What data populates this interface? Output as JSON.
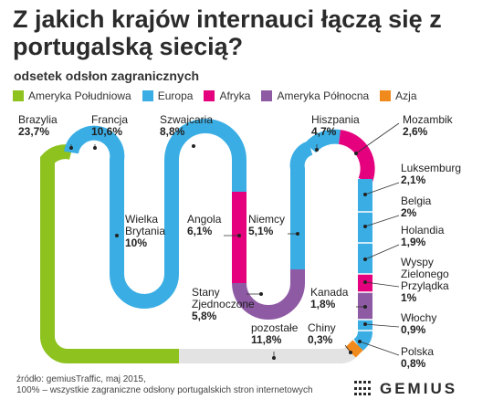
{
  "title": "Z jakich krajów internauci łączą się z portugalską siecią?",
  "subtitle": "odsetek odsłon zagranicznych",
  "legend": [
    {
      "name": "Ameryka Południowa",
      "color": "#8dc21f"
    },
    {
      "name": "Europa",
      "color": "#3aaee4"
    },
    {
      "name": "Afryka",
      "color": "#e5007e"
    },
    {
      "name": "Ameryka Północna",
      "color": "#8e5aa4"
    },
    {
      "name": "Azja",
      "color": "#f08a1c"
    }
  ],
  "chart_data": {
    "type": "serpentine-bar",
    "unit": "%",
    "segments": [
      {
        "name": "Brazylia",
        "value": "23,7%",
        "region": "Ameryka Południowa",
        "color": "#8dc21f"
      },
      {
        "name": "Francja",
        "value": "10,6%",
        "region": "Europa",
        "color": "#3aaee4"
      },
      {
        "name": "Wielka Brytania",
        "value": "10%",
        "region": "Europa",
        "color": "#3aaee4"
      },
      {
        "name": "Szwajcaria",
        "value": "8,8%",
        "region": "Europa",
        "color": "#3aaee4"
      },
      {
        "name": "Angola",
        "value": "6,1%",
        "region": "Afryka",
        "color": "#e5007e"
      },
      {
        "name": "Stany Zjednoczone",
        "value": "5,8%",
        "region": "Ameryka Północna",
        "color": "#8e5aa4"
      },
      {
        "name": "Niemcy",
        "value": "5,1%",
        "region": "Europa",
        "color": "#3aaee4"
      },
      {
        "name": "Hiszpania",
        "value": "4,7%",
        "region": "Europa",
        "color": "#3aaee4"
      },
      {
        "name": "Mozambik",
        "value": "2,6%",
        "region": "Afryka",
        "color": "#e5007e"
      },
      {
        "name": "Luksemburg",
        "value": "2,1%",
        "region": "Europa",
        "color": "#3aaee4"
      },
      {
        "name": "Belgia",
        "value": "2%",
        "region": "Europa",
        "color": "#3aaee4"
      },
      {
        "name": "Holandia",
        "value": "1,9%",
        "region": "Europa",
        "color": "#3aaee4"
      },
      {
        "name": "Wyspy Zielonego Przylądka",
        "value": "1%",
        "region": "Afryka",
        "color": "#e5007e"
      },
      {
        "name": "Kanada",
        "value": "1,8%",
        "region": "Ameryka Północna",
        "color": "#8e5aa4"
      },
      {
        "name": "Włochy",
        "value": "0,9%",
        "region": "Europa",
        "color": "#3aaee4"
      },
      {
        "name": "Polska",
        "value": "0,8%",
        "region": "Europa",
        "color": "#3aaee4"
      },
      {
        "name": "Chiny",
        "value": "0,3%",
        "region": "Azja",
        "color": "#f08a1c"
      },
      {
        "name": "pozostałe",
        "value": "11,8%",
        "region": "",
        "color": "#e3e3e3"
      }
    ],
    "labels": [
      {
        "id": "brazylia",
        "lines": [
          "Brazylia"
        ],
        "value": "23,7%"
      },
      {
        "id": "francja",
        "lines": [
          "Francja"
        ],
        "value": "10,6%"
      },
      {
        "id": "wb",
        "lines": [
          "Wielka",
          "Brytania"
        ],
        "value": "10%"
      },
      {
        "id": "szwajcaria",
        "lines": [
          "Szwajcaria"
        ],
        "value": "8,8%"
      },
      {
        "id": "angola",
        "lines": [
          "Angola"
        ],
        "value": "6,1%"
      },
      {
        "id": "usa",
        "lines": [
          "Stany",
          "Zjednoczone"
        ],
        "value": "5,8%"
      },
      {
        "id": "niemcy",
        "lines": [
          "Niemcy"
        ],
        "value": "5,1%"
      },
      {
        "id": "hiszpania",
        "lines": [
          "Hiszpania"
        ],
        "value": "4,7%"
      },
      {
        "id": "mozambik",
        "lines": [
          "Mozambik"
        ],
        "value": "2,6%"
      },
      {
        "id": "luksemburg",
        "lines": [
          "Luksemburg"
        ],
        "value": "2,1%"
      },
      {
        "id": "belgia",
        "lines": [
          "Belgia"
        ],
        "value": "2%"
      },
      {
        "id": "holandia",
        "lines": [
          "Holandia"
        ],
        "value": "1,9%"
      },
      {
        "id": "wyspy",
        "lines": [
          "Wyspy",
          "Zielonego",
          "Przylądka"
        ],
        "value": "1%"
      },
      {
        "id": "kanada",
        "lines": [
          "Kanada"
        ],
        "value": "1,8%"
      },
      {
        "id": "wlochy",
        "lines": [
          "Włochy"
        ],
        "value": "0,9%"
      },
      {
        "id": "polska",
        "lines": [
          "Polska"
        ],
        "value": "0,8%"
      },
      {
        "id": "chiny",
        "lines": [
          "Chiny"
        ],
        "value": "0,3%"
      },
      {
        "id": "pozostale",
        "lines": [
          "pozostałe"
        ],
        "value": "11,8%"
      }
    ]
  },
  "footer": {
    "source": "źródło: gemiusTraffic, maj 2015,",
    "note": "100% – wszystkie zagraniczne odsłony portugalskich stron internetowych"
  },
  "logo": {
    "text": "GEMIUS"
  }
}
